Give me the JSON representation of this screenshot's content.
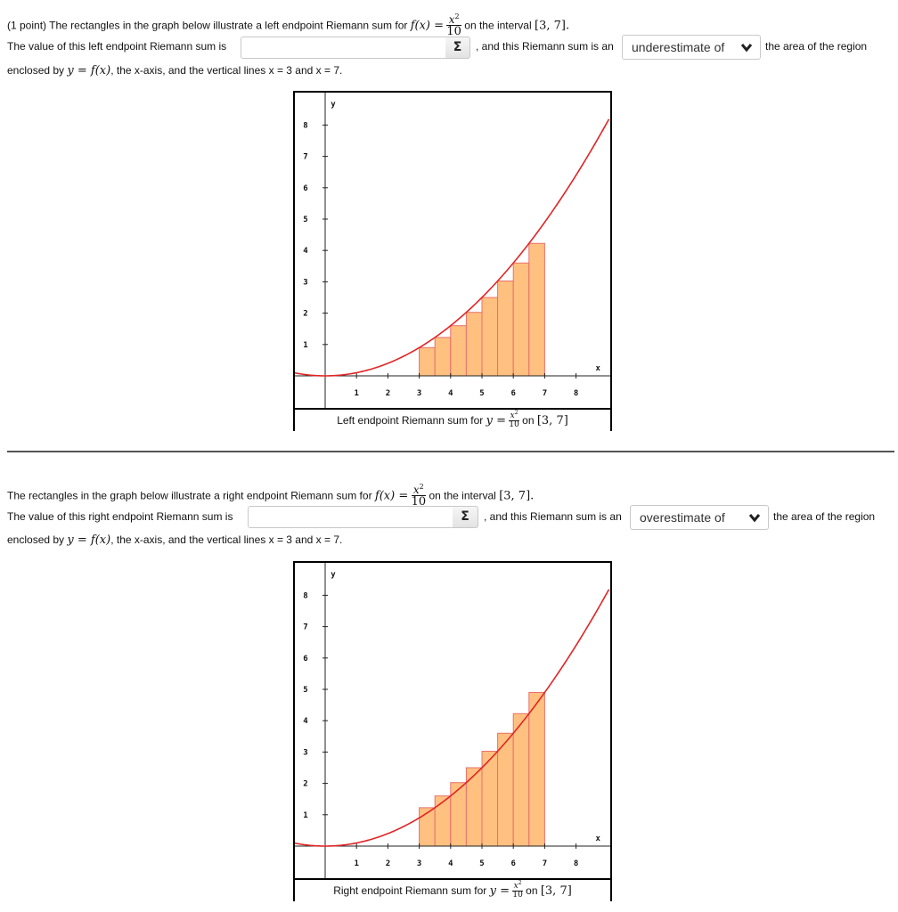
{
  "section1": {
    "prompt_prefix": "(1 point) The rectangles in the graph below illustrate a left endpoint Riemann sum for",
    "function_lhs": "f(x) =",
    "function_num": "x",
    "function_num_exp": "2",
    "function_den": "10",
    "prompt_suffix": "on the interval",
    "interval": "[3, 7]",
    "interval_end": ".",
    "value_label": "The value of this left endpoint Riemann sum is",
    "answer_value": "",
    "sigma_label": "Σ",
    "mid_text": ", and this Riemann sum is an",
    "select_value": "underestimate of",
    "after_select": "the area of the region",
    "enclosed_prefix": "enclosed by",
    "enclosed_math": "y = f(x)",
    "enclosed_suffix": ", the x-axis, and the vertical lines x = 3 and x = 7.",
    "caption_prefix": "Left endpoint Riemann sum for",
    "caption_y": "y =",
    "caption_num": "x",
    "caption_exp": "2",
    "caption_den": "10",
    "caption_on": "on",
    "caption_interval": "[3, 7]"
  },
  "section2": {
    "prompt_prefix": "The rectangles in the graph below illustrate a right endpoint Riemann sum for",
    "function_lhs": "f(x) =",
    "function_num": "x",
    "function_num_exp": "2",
    "function_den": "10",
    "prompt_suffix": "on the interval",
    "interval": "[3, 7]",
    "interval_end": ".",
    "value_label": "The value of this right endpoint Riemann sum is",
    "answer_value": "",
    "sigma_label": "Σ",
    "mid_text": ", and this Riemann sum is an",
    "select_value": "overestimate of",
    "after_select": "the area of the region",
    "enclosed_prefix": "enclosed by",
    "enclosed_math": "y = f(x)",
    "enclosed_suffix": ", the x-axis, and the vertical lines x = 3 and x = 7.",
    "caption_prefix": "Right endpoint Riemann sum for",
    "caption_y": "y =",
    "caption_num": "x",
    "caption_exp": "2",
    "caption_den": "10",
    "caption_on": "on",
    "caption_interval": "[3, 7]"
  },
  "colors": {
    "curve": "#e02525",
    "rect_fill": "#ffc080",
    "rect_stroke": "#e8706a",
    "axis": "#222222"
  },
  "chart_data": [
    {
      "type": "bar",
      "title": "Left endpoint Riemann sum for y = x^2/10 on [3, 7]",
      "function": "x^2/10",
      "xlabel": "x",
      "ylabel": "y",
      "xlim": [
        -1,
        9
      ],
      "ylim": [
        -1,
        9
      ],
      "x_ticks": [
        1,
        2,
        3,
        4,
        5,
        6,
        7,
        8
      ],
      "y_ticks": [
        1,
        2,
        3,
        4,
        5,
        6,
        7,
        8
      ],
      "grid": false,
      "rule": "left",
      "interval": [
        3,
        7
      ],
      "n": 8,
      "width": 0.5,
      "rect_left_edges": [
        3,
        3.5,
        4,
        4.5,
        5,
        5.5,
        6,
        6.5
      ],
      "values": [
        0.9,
        1.225,
        1.6,
        2.025,
        2.5,
        3.025,
        3.6,
        4.225
      ]
    },
    {
      "type": "bar",
      "title": "Right endpoint Riemann sum for y = x^2/10 on [3, 7]",
      "function": "x^2/10",
      "xlabel": "x",
      "ylabel": "y",
      "xlim": [
        -1,
        9
      ],
      "ylim": [
        -1,
        9
      ],
      "x_ticks": [
        1,
        2,
        3,
        4,
        5,
        6,
        7,
        8
      ],
      "y_ticks": [
        1,
        2,
        3,
        4,
        5,
        6,
        7,
        8
      ],
      "grid": false,
      "rule": "right",
      "interval": [
        3,
        7
      ],
      "n": 8,
      "width": 0.5,
      "rect_left_edges": [
        3,
        3.5,
        4,
        4.5,
        5,
        5.5,
        6,
        6.5
      ],
      "values": [
        1.225,
        1.6,
        2.025,
        2.5,
        3.025,
        3.6,
        4.225,
        4.9
      ]
    }
  ]
}
